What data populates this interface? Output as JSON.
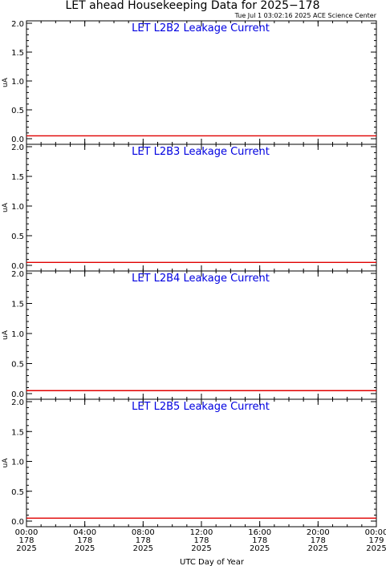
{
  "page": {
    "title": "LET ahead Housekeeping Data for 2025−178",
    "timestamp": "Tue Jul  1 03:02:16 2025 ACE Science Center",
    "xlabel": "UTC Day of Year",
    "line_color": "#e00000",
    "panel_title_color": "#0000e0"
  },
  "chart_data": [
    {
      "type": "line",
      "title": "LET L2B2 Leakage Current",
      "ylabel": "uA",
      "ylim": [
        0.0,
        2.0
      ],
      "yticks": [
        "0.0",
        "0.5",
        "1.0",
        "1.5",
        "2.0"
      ],
      "xlim": [
        0,
        24
      ],
      "series": [
        {
          "x": [
            0,
            24
          ],
          "values": [
            0.05,
            0.05
          ]
        }
      ]
    },
    {
      "type": "line",
      "title": "LET L2B3 Leakage Current",
      "ylabel": "uA",
      "ylim": [
        0.0,
        2.0
      ],
      "yticks": [
        "0.0",
        "0.5",
        "1.0",
        "1.5",
        "2.0"
      ],
      "xlim": [
        0,
        24
      ],
      "series": [
        {
          "x": [
            0,
            24
          ],
          "values": [
            0.05,
            0.05
          ]
        }
      ]
    },
    {
      "type": "line",
      "title": "LET L2B4 Leakage Current",
      "ylabel": "uA",
      "ylim": [
        0.0,
        2.0
      ],
      "yticks": [
        "0.0",
        "0.5",
        "1.0",
        "1.5",
        "2.0"
      ],
      "xlim": [
        0,
        24
      ],
      "series": [
        {
          "x": [
            0,
            24
          ],
          "values": [
            0.05,
            0.05
          ]
        }
      ]
    },
    {
      "type": "line",
      "title": "LET L2B5 Leakage Current",
      "ylabel": "uA",
      "ylim": [
        0.0,
        2.0
      ],
      "yticks": [
        "0.0",
        "0.5",
        "1.0",
        "1.5",
        "2.0"
      ],
      "xlim": [
        0,
        24
      ],
      "series": [
        {
          "x": [
            0,
            24
          ],
          "values": [
            0.05,
            0.05
          ]
        }
      ]
    }
  ],
  "x_axis": {
    "ticks": [
      {
        "hours": 0,
        "time": "00:00",
        "doy": "178",
        "year": "2025"
      },
      {
        "hours": 4,
        "time": "04:00",
        "doy": "178",
        "year": "2025"
      },
      {
        "hours": 8,
        "time": "08:00",
        "doy": "178",
        "year": "2025"
      },
      {
        "hours": 12,
        "time": "12:00",
        "doy": "178",
        "year": "2025"
      },
      {
        "hours": 16,
        "time": "16:00",
        "doy": "178",
        "year": "2025"
      },
      {
        "hours": 20,
        "time": "20:00",
        "doy": "178",
        "year": "2025"
      },
      {
        "hours": 24,
        "time": "00:00",
        "doy": "179",
        "year": "2025"
      }
    ]
  }
}
